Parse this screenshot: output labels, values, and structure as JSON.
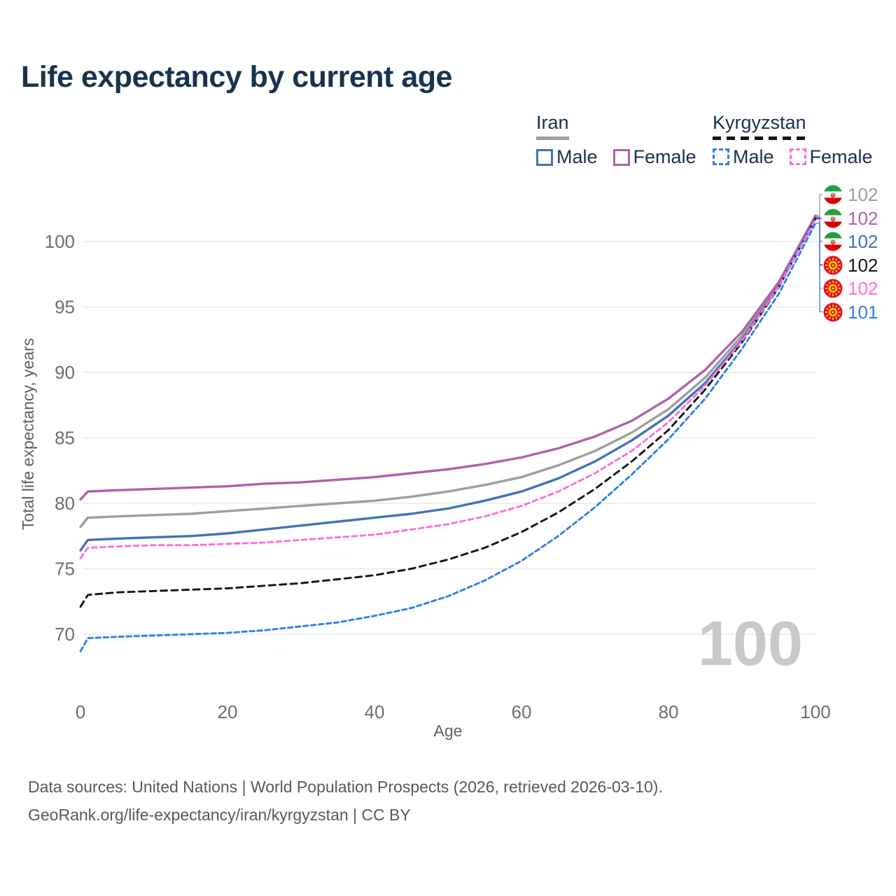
{
  "title": "Life expectancy by current age",
  "legend": {
    "groups": [
      {
        "country": "Iran",
        "line_style": "solid",
        "items": [
          {
            "label": "Male",
            "color_key": "iran_male"
          },
          {
            "label": "Female",
            "color_key": "iran_female"
          }
        ]
      },
      {
        "country": "Kyrgyzstan",
        "line_style": "dashed",
        "items": [
          {
            "label": "Male",
            "color_key": "kg_male"
          },
          {
            "label": "Female",
            "color_key": "kg_female"
          }
        ]
      }
    ]
  },
  "footer": {
    "line1": "Data sources: United Nations | World Population Prospects (2026, retrieved 2026-03-10).",
    "line2": "GeoRank.org/life-expectancy/iran/kyrgyzstan | CC BY"
  },
  "colors": {
    "heading": "#17334f",
    "iran_total": "#9e9e9e",
    "iran_female": "#af62a8",
    "iran_male": "#4472b8",
    "kg_total": "#141414",
    "kg_female": "#ff6fd8",
    "kg_male": "#2f80e8",
    "grid": "#e9e9e9",
    "tick": "#6e6e6e",
    "axis_label": "#606060",
    "watermark": "#c8c8c8"
  },
  "chart_data": {
    "type": "line",
    "title": "Life expectancy by current age",
    "xlabel": "Age",
    "ylabel": "Total life expectancy, years",
    "xlim": [
      0,
      100
    ],
    "ylim": [
      68,
      103
    ],
    "x_ticks": [
      0,
      20,
      40,
      60,
      80,
      100
    ],
    "y_ticks": [
      70,
      75,
      80,
      85,
      90,
      95,
      100
    ],
    "grid": true,
    "legend_position": "top-right",
    "watermark": "100",
    "x": [
      0,
      1,
      5,
      10,
      15,
      20,
      25,
      30,
      35,
      40,
      45,
      50,
      55,
      60,
      65,
      70,
      75,
      80,
      85,
      90,
      95,
      100
    ],
    "series": [
      {
        "id": "iran-total",
        "name": "Iran Total",
        "country": "Iran",
        "sex": "Total",
        "style": "solid",
        "dash": "",
        "color_key": "iran_total",
        "flag": "iran",
        "end_label": "102",
        "values": [
          78.2,
          78.9,
          79.0,
          79.1,
          79.2,
          79.4,
          79.6,
          79.8,
          80.0,
          80.2,
          80.5,
          80.9,
          81.4,
          82.0,
          82.9,
          84.0,
          85.4,
          87.2,
          89.6,
          92.8,
          96.8,
          102.0
        ]
      },
      {
        "id": "iran-female",
        "name": "Iran Female",
        "country": "Iran",
        "sex": "Female",
        "style": "solid",
        "dash": "",
        "color_key": "iran_female",
        "flag": "iran",
        "end_label": "102",
        "values": [
          80.3,
          80.9,
          81.0,
          81.1,
          81.2,
          81.3,
          81.5,
          81.6,
          81.8,
          82.0,
          82.3,
          82.6,
          83.0,
          83.5,
          84.2,
          85.1,
          86.3,
          88.0,
          90.2,
          93.1,
          96.9,
          101.9
        ]
      },
      {
        "id": "iran-male",
        "name": "Iran Male",
        "country": "Iran",
        "sex": "Male",
        "style": "solid",
        "dash": "",
        "color_key": "iran_male",
        "flag": "iran",
        "end_label": "102",
        "values": [
          76.4,
          77.2,
          77.3,
          77.4,
          77.5,
          77.7,
          78.0,
          78.3,
          78.6,
          78.9,
          79.2,
          79.6,
          80.2,
          80.9,
          81.9,
          83.2,
          84.8,
          86.7,
          89.2,
          92.5,
          96.6,
          101.8
        ]
      },
      {
        "id": "kg-total",
        "name": "Kyrgyzstan Total",
        "country": "Kyrgyzstan",
        "sex": "Total",
        "style": "dashed",
        "dash": "9 6.5",
        "color_key": "kg_total",
        "flag": "kyrgyzstan",
        "end_label": "102",
        "values": [
          72.1,
          73.0,
          73.2,
          73.3,
          73.4,
          73.5,
          73.7,
          73.9,
          74.2,
          74.5,
          75.0,
          75.7,
          76.6,
          77.8,
          79.3,
          81.1,
          83.2,
          85.6,
          88.7,
          92.3,
          96.5,
          101.75
        ]
      },
      {
        "id": "kg-female",
        "name": "Kyrgyzstan Female",
        "country": "Kyrgyzstan",
        "sex": "Female",
        "style": "dashed",
        "dash": "7 5",
        "color_key": "kg_female",
        "flag": "kyrgyzstan",
        "end_label": "102",
        "values": [
          75.8,
          76.6,
          76.7,
          76.8,
          76.8,
          76.9,
          77.0,
          77.2,
          77.4,
          77.6,
          78.0,
          78.4,
          79.0,
          79.8,
          80.9,
          82.3,
          84.0,
          86.2,
          89.0,
          92.4,
          96.55,
          101.7
        ]
      },
      {
        "id": "kg-male",
        "name": "Kyrgyzstan Male",
        "country": "Kyrgyzstan",
        "sex": "Male",
        "style": "dashed",
        "dash": "6.5 4.5",
        "color_key": "kg_male",
        "flag": "kyrgyzstan",
        "end_label": "101",
        "values": [
          68.7,
          69.7,
          69.8,
          69.9,
          70.0,
          70.1,
          70.3,
          70.6,
          70.9,
          71.4,
          72.0,
          72.9,
          74.1,
          75.6,
          77.5,
          79.7,
          82.2,
          84.9,
          88.0,
          91.8,
          96.0,
          101.4
        ]
      }
    ]
  }
}
